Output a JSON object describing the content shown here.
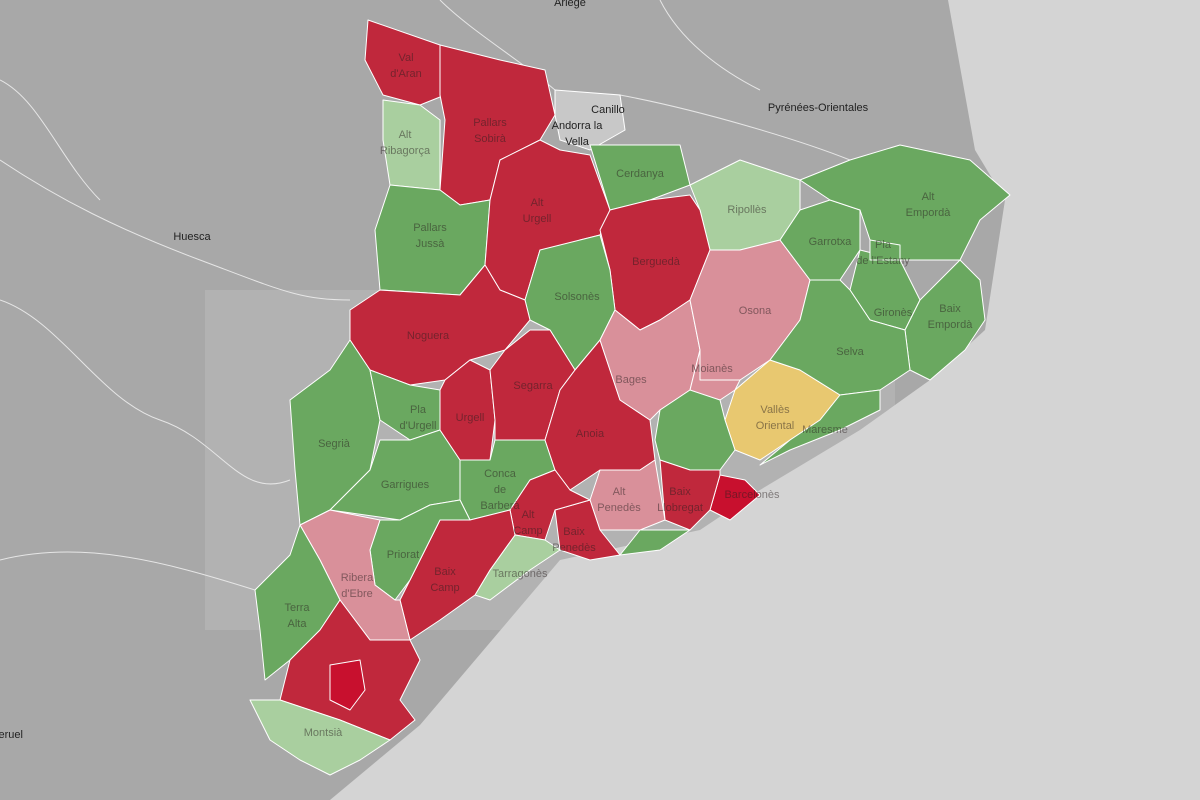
{
  "map": {
    "places": [
      {
        "lines": [
          "Ariège"
        ]
      },
      {
        "lines": [
          "Canillo"
        ]
      },
      {
        "lines": [
          "Andorra la",
          "Vella"
        ]
      },
      {
        "lines": [
          "Pyrénées-Orientales"
        ]
      },
      {
        "lines": [
          "Huesca"
        ]
      },
      {
        "lines": [
          "Teruel"
        ]
      }
    ],
    "regions": [
      {
        "lines": [
          "Val",
          "d'Aran"
        ]
      },
      {
        "lines": [
          "Pallars",
          "Sobirà"
        ]
      },
      {
        "lines": [
          "Alt",
          "Ribagorça"
        ]
      },
      {
        "lines": [
          "Alt",
          "Urgell"
        ]
      },
      {
        "lines": [
          "Cerdanya"
        ]
      },
      {
        "lines": [
          "Ripollès"
        ]
      },
      {
        "lines": [
          "Alt",
          "Empordà"
        ]
      },
      {
        "lines": [
          "Garrotxa"
        ]
      },
      {
        "lines": [
          "Pla",
          "de l'Estany"
        ]
      },
      {
        "lines": [
          "Gironès"
        ]
      },
      {
        "lines": [
          "Baix",
          "Empordà"
        ]
      },
      {
        "lines": [
          "Pallars",
          "Jussà"
        ]
      },
      {
        "lines": [
          "Berguedà"
        ]
      },
      {
        "lines": [
          "Solsonès"
        ]
      },
      {
        "lines": [
          "Osona"
        ]
      },
      {
        "lines": [
          "Selva"
        ]
      },
      {
        "lines": [
          "Noguera"
        ]
      },
      {
        "lines": [
          "Bages"
        ]
      },
      {
        "lines": [
          "Moianès"
        ]
      },
      {
        "lines": [
          "Segarra"
        ]
      },
      {
        "lines": [
          "Pla",
          "d'Urgell"
        ]
      },
      {
        "lines": [
          "Vallès",
          "Oriental"
        ]
      },
      {
        "lines": [
          "Maresme"
        ]
      },
      {
        "lines": [
          "Segrià"
        ]
      },
      {
        "lines": [
          "Urgell"
        ]
      },
      {
        "lines": [
          "Anoia"
        ]
      },
      {
        "lines": [
          "Garrigues"
        ]
      },
      {
        "lines": [
          "Conca",
          "de",
          "Barberà"
        ]
      },
      {
        "lines": [
          "Barcelonès"
        ]
      },
      {
        "lines": [
          "Baix",
          "Llobregat"
        ]
      },
      {
        "lines": [
          "Alt",
          "Penedès"
        ]
      },
      {
        "lines": [
          "Alt",
          "Camp"
        ]
      },
      {
        "lines": [
          "Baix",
          "Penedès"
        ]
      },
      {
        "lines": [
          "Priorat"
        ]
      },
      {
        "lines": [
          "Ribera",
          "d'Ebre"
        ]
      },
      {
        "lines": [
          "Baix",
          "Camp"
        ]
      },
      {
        "lines": [
          "Tarragonès"
        ]
      },
      {
        "lines": [
          "Terra",
          "Alta"
        ]
      },
      {
        "lines": [
          "Montsià"
        ]
      }
    ]
  }
}
